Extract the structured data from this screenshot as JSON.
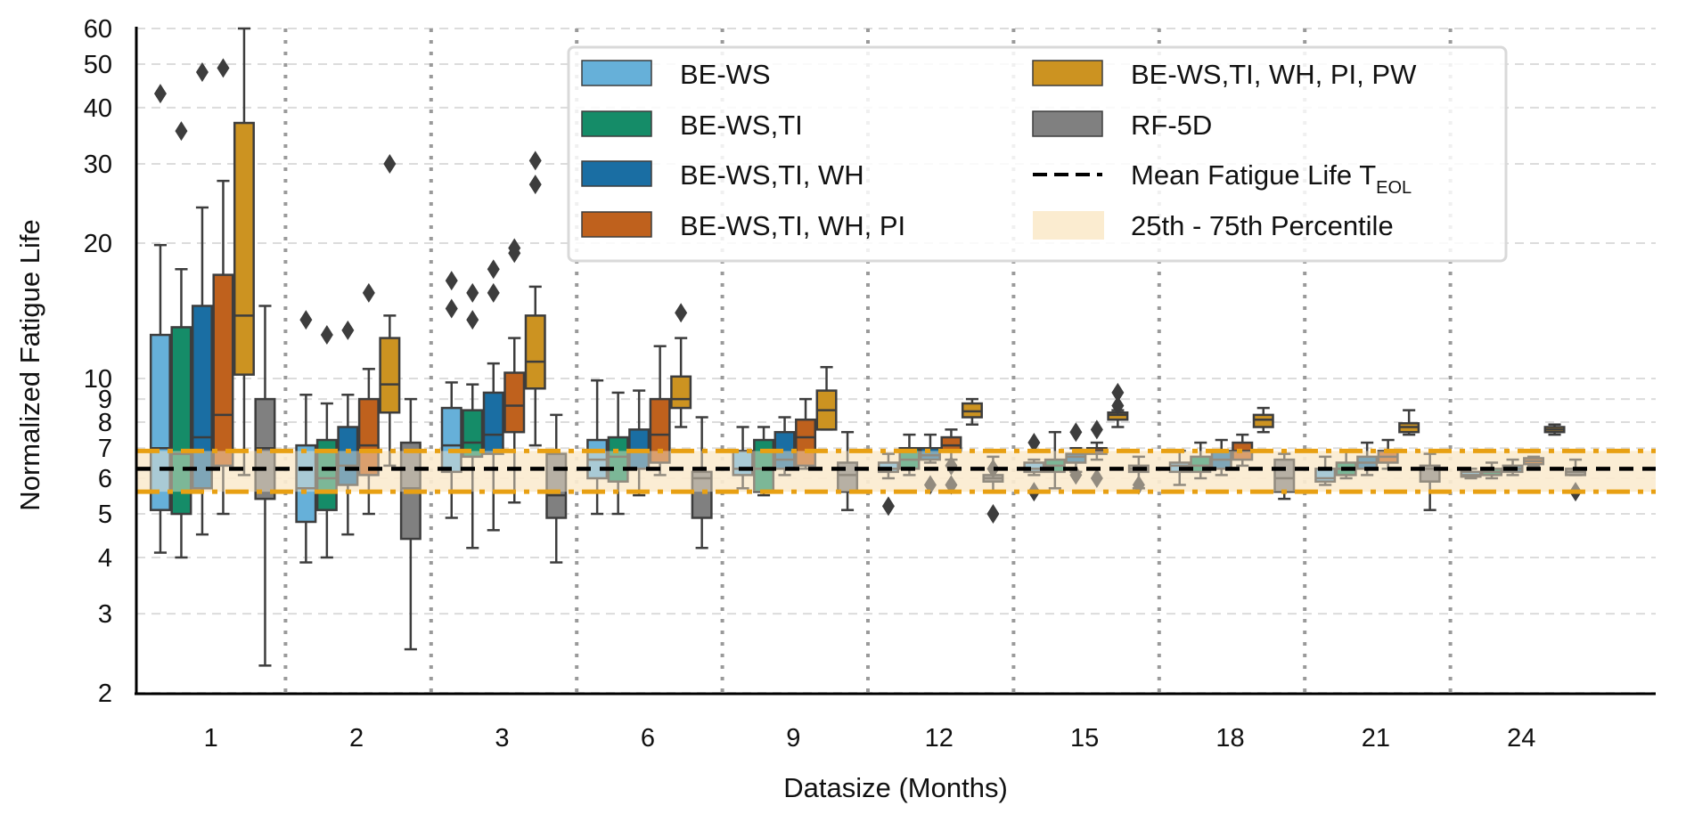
{
  "chart_data": {
    "type": "boxplot",
    "title": "",
    "xlabel": "Datasize (Months)",
    "ylabel": "Normalized Fatigue Life",
    "yscale": "log",
    "ylim": [
      2,
      60
    ],
    "yticks": [
      2,
      3,
      4,
      5,
      6,
      7,
      8,
      9,
      10,
      20,
      30,
      40,
      50,
      60
    ],
    "ytick_labels": [
      "2",
      "3",
      "4",
      "5",
      "6",
      "7",
      "8",
      "9",
      "10",
      "20",
      "30",
      "40",
      "50",
      "60"
    ],
    "categories": [
      "1",
      "2",
      "3",
      "6",
      "9",
      "12",
      "15",
      "18",
      "21",
      "24"
    ],
    "grid": "horizontal dashed, vertical dotted separators between groups",
    "legend_position": "top-right",
    "reference": {
      "mean_label": "Mean Fatigue Life T",
      "mean_subscript": "EOL",
      "mean_value": 6.3,
      "band_label": "25th - 75th Percentile",
      "band_low": 5.6,
      "band_high": 6.9,
      "band_color": "#fbecd0",
      "band_edge_color": "#e8a013",
      "mean_color": "#000000"
    },
    "series": [
      {
        "name": "BE-WS",
        "color": "#66b0d9",
        "boxes": [
          {
            "whislo": 4.1,
            "q1": 5.1,
            "med": 7.0,
            "q3": 12.5,
            "whishi": 19.8,
            "fliers": [
              43
            ]
          },
          {
            "whislo": 3.9,
            "q1": 4.8,
            "med": 5.7,
            "q3": 7.1,
            "whishi": 9.2,
            "fliers": [
              13.5
            ]
          },
          {
            "whislo": 4.9,
            "q1": 6.2,
            "med": 7.1,
            "q3": 8.6,
            "whishi": 9.8,
            "fliers": [
              16.5,
              14.3
            ]
          },
          {
            "whislo": 5.0,
            "q1": 6.0,
            "med": 6.6,
            "q3": 7.3,
            "whishi": 9.9,
            "fliers": []
          },
          {
            "whislo": 5.7,
            "q1": 6.1,
            "med": 6.3,
            "q3": 6.9,
            "whishi": 7.8,
            "fliers": []
          },
          {
            "whislo": 6.0,
            "q1": 6.2,
            "med": 6.3,
            "q3": 6.5,
            "whishi": 6.8,
            "fliers": [
              5.2
            ]
          },
          {
            "whislo": 6.1,
            "q1": 6.2,
            "med": 6.3,
            "q3": 6.5,
            "whishi": 6.6,
            "fliers": [
              7.2,
              5.6
            ]
          },
          {
            "whislo": 5.8,
            "q1": 6.2,
            "med": 6.4,
            "q3": 6.5,
            "whishi": 6.9,
            "fliers": []
          },
          {
            "whislo": 5.8,
            "q1": 5.9,
            "med": 6.0,
            "q3": 6.3,
            "whishi": 6.7,
            "fliers": []
          },
          {
            "whislo": 6.0,
            "q1": 6.05,
            "med": 6.1,
            "q3": 6.2,
            "whishi": 6.3,
            "fliers": []
          }
        ]
      },
      {
        "name": "BE-WS,TI",
        "color": "#158c68",
        "boxes": [
          {
            "whislo": 4.0,
            "q1": 5.0,
            "med": 6.8,
            "q3": 13.0,
            "whishi": 17.5,
            "fliers": [
              35.5
            ]
          },
          {
            "whislo": 4.0,
            "q1": 5.1,
            "med": 6.0,
            "q3": 7.3,
            "whishi": 8.8,
            "fliers": [
              12.5
            ]
          },
          {
            "whislo": 4.2,
            "q1": 6.7,
            "med": 7.2,
            "q3": 8.5,
            "whishi": 9.7,
            "fliers": [
              15.5,
              13.5
            ]
          },
          {
            "whislo": 5.0,
            "q1": 5.9,
            "med": 6.7,
            "q3": 7.4,
            "whishi": 9.3,
            "fliers": []
          },
          {
            "whislo": 5.5,
            "q1": 5.6,
            "med": 6.3,
            "q3": 7.3,
            "whishi": 7.8,
            "fliers": []
          },
          {
            "whislo": 6.1,
            "q1": 6.3,
            "med": 6.6,
            "q3": 7.0,
            "whishi": 7.5,
            "fliers": []
          },
          {
            "whislo": 5.7,
            "q1": 6.2,
            "med": 6.4,
            "q3": 6.6,
            "whishi": 7.6,
            "fliers": []
          },
          {
            "whislo": 6.0,
            "q1": 6.2,
            "med": 6.4,
            "q3": 6.7,
            "whishi": 7.2,
            "fliers": []
          },
          {
            "whislo": 6.0,
            "q1": 6.1,
            "med": 6.3,
            "q3": 6.5,
            "whishi": 6.9,
            "fliers": []
          },
          {
            "whislo": 6.0,
            "q1": 6.1,
            "med": 6.2,
            "q3": 6.3,
            "whishi": 6.5,
            "fliers": []
          }
        ]
      },
      {
        "name": "BE-WS,TI, WH",
        "color": "#1a6ea3",
        "boxes": [
          {
            "whislo": 4.5,
            "q1": 5.7,
            "med": 7.4,
            "q3": 14.5,
            "whishi": 24.0,
            "fliers": [
              48
            ]
          },
          {
            "whislo": 4.5,
            "q1": 5.8,
            "med": 6.4,
            "q3": 7.8,
            "whishi": 9.2,
            "fliers": [
              12.8
            ]
          },
          {
            "whislo": 4.6,
            "q1": 6.8,
            "med": 7.5,
            "q3": 9.3,
            "whishi": 10.8,
            "fliers": [
              17.5,
              15.5
            ]
          },
          {
            "whislo": 5.5,
            "q1": 6.3,
            "med": 6.9,
            "q3": 7.7,
            "whishi": 9.4,
            "fliers": []
          },
          {
            "whislo": 6.1,
            "q1": 6.3,
            "med": 6.6,
            "q3": 7.6,
            "whishi": 8.2,
            "fliers": []
          },
          {
            "whislo": 6.5,
            "q1": 6.6,
            "med": 6.75,
            "q3": 7.0,
            "whishi": 7.5,
            "fliers": [
              5.8
            ]
          },
          {
            "whislo": 6.2,
            "q1": 6.5,
            "med": 6.7,
            "q3": 6.8,
            "whishi": 7.0,
            "fliers": [
              7.6,
              6.1
            ]
          },
          {
            "whislo": 6.1,
            "q1": 6.3,
            "med": 6.6,
            "q3": 6.9,
            "whishi": 7.3,
            "fliers": []
          },
          {
            "whislo": 6.1,
            "q1": 6.3,
            "med": 6.5,
            "q3": 6.7,
            "whishi": 7.2,
            "fliers": []
          },
          {
            "whislo": 6.1,
            "q1": 6.2,
            "med": 6.3,
            "q3": 6.4,
            "whishi": 6.6,
            "fliers": []
          }
        ]
      },
      {
        "name": "BE-WS,TI, WH, PI",
        "color": "#bf611d",
        "boxes": [
          {
            "whislo": 5.0,
            "q1": 6.4,
            "med": 8.3,
            "q3": 17.0,
            "whishi": 27.5,
            "fliers": [
              49
            ]
          },
          {
            "whislo": 5.0,
            "q1": 6.1,
            "med": 7.1,
            "q3": 9.0,
            "whishi": 10.5,
            "fliers": [
              15.5
            ]
          },
          {
            "whislo": 5.3,
            "q1": 7.6,
            "med": 8.7,
            "q3": 10.3,
            "whishi": 12.3,
            "fliers": [
              19.5,
              19.0
            ]
          },
          {
            "whislo": 6.1,
            "q1": 6.5,
            "med": 7.5,
            "q3": 9.0,
            "whishi": 11.8,
            "fliers": []
          },
          {
            "whislo": 6.3,
            "q1": 6.4,
            "med": 7.4,
            "q3": 8.1,
            "whishi": 9.0,
            "fliers": []
          },
          {
            "whislo": 6.6,
            "q1": 6.9,
            "med": 7.1,
            "q3": 7.4,
            "whishi": 7.7,
            "fliers": [
              6.4,
              5.8
            ]
          },
          {
            "whislo": 6.6,
            "q1": 6.8,
            "med": 6.9,
            "q3": 7.0,
            "whishi": 7.2,
            "fliers": [
              7.7,
              6.0
            ]
          },
          {
            "whislo": 6.4,
            "q1": 6.6,
            "med": 6.9,
            "q3": 7.2,
            "whishi": 7.5,
            "fliers": []
          },
          {
            "whislo": 6.3,
            "q1": 6.5,
            "med": 6.7,
            "q3": 6.9,
            "whishi": 7.3,
            "fliers": []
          },
          {
            "whislo": 6.4,
            "q1": 6.45,
            "med": 6.55,
            "q3": 6.65,
            "whishi": 6.7,
            "fliers": []
          }
        ]
      },
      {
        "name": "BE-WS,TI, WH, PI, PW",
        "color": "#cc9321",
        "boxes": [
          {
            "whislo": 6.1,
            "q1": 10.2,
            "med": 13.8,
            "q3": 37.0,
            "whishi": 60.0,
            "fliers": []
          },
          {
            "whislo": 6.4,
            "q1": 8.4,
            "med": 9.7,
            "q3": 12.3,
            "whishi": 13.8,
            "fliers": [
              30.0
            ]
          },
          {
            "whislo": 7.1,
            "q1": 9.5,
            "med": 10.9,
            "q3": 13.8,
            "whishi": 16.0,
            "fliers": [
              30.5,
              27.0
            ]
          },
          {
            "whislo": 7.8,
            "q1": 8.6,
            "med": 9.0,
            "q3": 10.1,
            "whishi": 12.3,
            "fliers": [
              14.0
            ]
          },
          {
            "whislo": 7.7,
            "q1": 7.7,
            "med": 8.5,
            "q3": 9.4,
            "whishi": 10.6,
            "fliers": []
          },
          {
            "whislo": 7.9,
            "q1": 8.2,
            "med": 8.45,
            "q3": 8.8,
            "whishi": 9.0,
            "fliers": []
          },
          {
            "whislo": 7.8,
            "q1": 8.1,
            "med": 8.3,
            "q3": 8.4,
            "whishi": 8.5,
            "fliers": [
              9.3,
              8.7
            ]
          },
          {
            "whislo": 7.6,
            "q1": 7.8,
            "med": 8.1,
            "q3": 8.3,
            "whishi": 8.6,
            "fliers": []
          },
          {
            "whislo": 7.5,
            "q1": 7.6,
            "med": 7.8,
            "q3": 7.95,
            "whishi": 8.5,
            "fliers": []
          },
          {
            "whislo": 7.5,
            "q1": 7.6,
            "med": 7.7,
            "q3": 7.8,
            "whishi": 7.9,
            "fliers": []
          }
        ]
      },
      {
        "name": "RF-5D",
        "color": "#808080",
        "boxes": [
          {
            "whislo": 2.3,
            "q1": 5.4,
            "med": 7.0,
            "q3": 9.0,
            "whishi": 14.5,
            "fliers": []
          },
          {
            "whislo": 2.5,
            "q1": 4.4,
            "med": 5.7,
            "q3": 7.2,
            "whishi": 9.0,
            "fliers": []
          },
          {
            "whislo": 3.9,
            "q1": 4.9,
            "med": 5.5,
            "q3": 6.8,
            "whishi": 8.3,
            "fliers": []
          },
          {
            "whislo": 4.2,
            "q1": 4.9,
            "med": 6.0,
            "q3": 6.2,
            "whishi": 8.2,
            "fliers": []
          },
          {
            "whislo": 5.1,
            "q1": 5.6,
            "med": 6.1,
            "q3": 6.5,
            "whishi": 7.6,
            "fliers": []
          },
          {
            "whislo": 5.6,
            "q1": 5.9,
            "med": 6.0,
            "q3": 6.1,
            "whishi": 6.7,
            "fliers": [
              5.0,
              6.3
            ]
          },
          {
            "whislo": 5.7,
            "q1": 6.2,
            "med": 6.3,
            "q3": 6.4,
            "whishi": 6.7,
            "fliers": [
              5.8
            ]
          },
          {
            "whislo": 5.4,
            "q1": 5.6,
            "med": 6.0,
            "q3": 6.6,
            "whishi": 6.8,
            "fliers": []
          },
          {
            "whislo": 5.1,
            "q1": 5.9,
            "med": 6.3,
            "q3": 6.4,
            "whishi": 6.8,
            "fliers": []
          },
          {
            "whislo": 6.1,
            "q1": 6.1,
            "med": 6.2,
            "q3": 6.3,
            "whishi": 6.6,
            "fliers": [
              5.6
            ]
          }
        ]
      }
    ]
  }
}
